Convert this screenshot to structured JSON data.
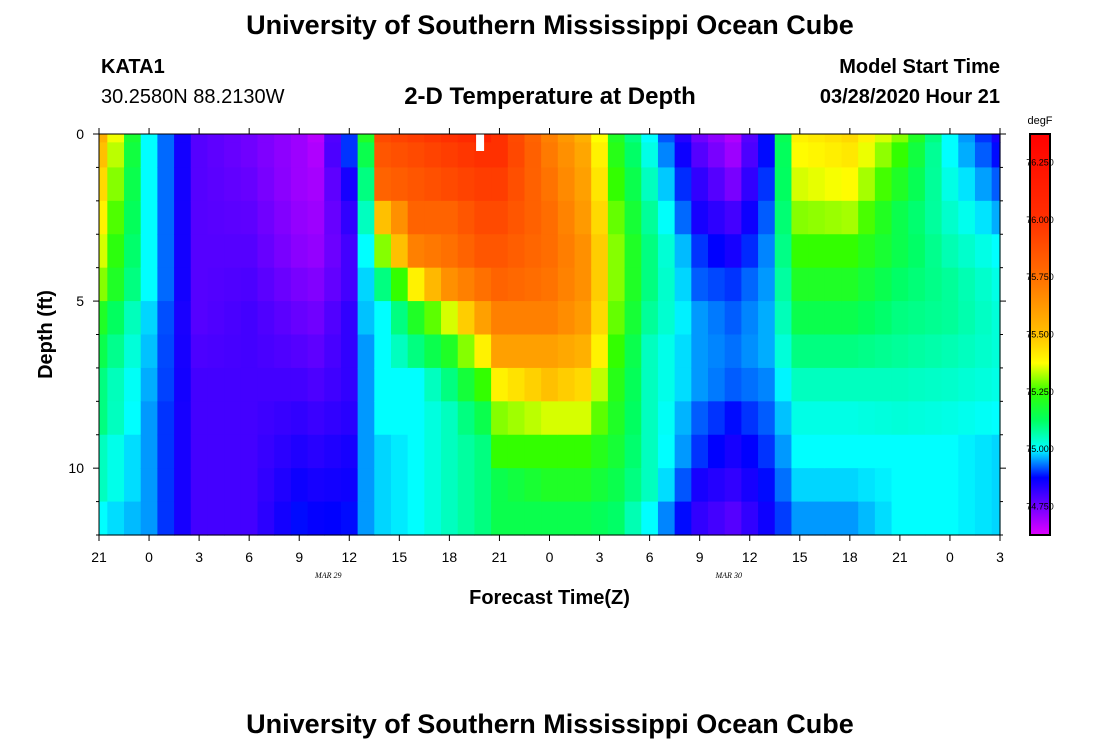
{
  "header": {
    "title": "University of Southern Mississippi Ocean Cube",
    "station": "KATA1",
    "coords": "30.2580N 88.2130W",
    "chart_title": "2-D Temperature at Depth",
    "model_start_label": "Model Start Time",
    "model_start_value": "03/28/2020 Hour 21"
  },
  "footer": {
    "title": "University of Southern Mississippi Ocean Cube"
  },
  "chart_data": {
    "type": "heatmap",
    "title": "2-D Temperature at Depth",
    "xlabel": "Forecast Time(Z)",
    "ylabel": "Depth (ft)",
    "x_hours": [
      0,
      1,
      2,
      3,
      4,
      5,
      6,
      7,
      8,
      9,
      10,
      11,
      12,
      13,
      14,
      15,
      16,
      17,
      18,
      19,
      20,
      21,
      22,
      23,
      24,
      25,
      26,
      27,
      28,
      29,
      30,
      31,
      32,
      33,
      34,
      35,
      36,
      37,
      38,
      39,
      40,
      41,
      42,
      43,
      44,
      45,
      46,
      47,
      48,
      49,
      50,
      51,
      52,
      53,
      54
    ],
    "x_range": [
      0,
      54
    ],
    "y_range": [
      0,
      12
    ],
    "y_ticks": [
      0,
      5,
      10
    ],
    "y_tick_labels": [
      "0",
      "5",
      "10"
    ],
    "x_ticks": [
      0,
      3,
      6,
      9,
      12,
      15,
      18,
      21,
      24,
      27,
      30,
      33,
      36,
      39,
      42,
      45,
      48,
      51,
      54
    ],
    "x_tick_labels": [
      "21",
      "0",
      "3",
      "6",
      "9",
      "12",
      "15",
      "18",
      "21",
      "0",
      "3",
      "6",
      "9",
      "12",
      "15",
      "18",
      "21",
      "0",
      "3"
    ],
    "date_labels": [
      {
        "label": "MAR 29",
        "x": 15
      },
      {
        "label": "MAR 30",
        "x": 39
      }
    ],
    "depth_levels": [
      0,
      0.5,
      1.5,
      2.5,
      3.5,
      4.5,
      5.5,
      6.5,
      7.5,
      8.5,
      9.5,
      10.5,
      11.5
    ],
    "profiles": [
      {
        "hour": 0,
        "temps": [
          75.55,
          75.5,
          75.45,
          75.4,
          75.35,
          75.3,
          75.2,
          75.15,
          75.1,
          75.1,
          75.05,
          75.05,
          75.0
        ]
      },
      {
        "hour": 3,
        "temps": [
          75.0,
          75.0,
          75.0,
          75.0,
          75.0,
          75.0,
          74.98,
          74.97,
          74.96,
          74.95,
          74.95,
          74.95,
          74.95
        ]
      },
      {
        "hour": 6,
        "temps": [
          74.78,
          74.78,
          74.78,
          74.78,
          74.78,
          74.78,
          74.78,
          74.79,
          74.8,
          74.8,
          74.8,
          74.8,
          74.8
        ]
      },
      {
        "hour": 9,
        "temps": [
          74.75,
          74.75,
          74.76,
          74.77,
          74.78,
          74.79,
          74.8,
          74.8,
          74.8,
          74.8,
          74.8,
          74.8,
          74.8
        ]
      },
      {
        "hour": 12,
        "temps": [
          74.7,
          74.7,
          74.7,
          74.71,
          74.72,
          74.74,
          74.76,
          74.78,
          74.8,
          74.82,
          74.84,
          74.86,
          74.88
        ]
      },
      {
        "hour": 13,
        "temps": [
          74.67,
          74.68,
          74.69,
          74.7,
          74.71,
          74.73,
          74.75,
          74.77,
          74.79,
          74.81,
          74.83,
          74.85,
          74.87
        ]
      },
      {
        "hour": 15,
        "temps": [
          74.9,
          74.9,
          74.85,
          74.82,
          74.8,
          74.8,
          74.82,
          74.82,
          74.82,
          74.83,
          74.85,
          74.86,
          74.88
        ]
      },
      {
        "hour": 16,
        "temps": [
          75.2,
          75.15,
          75.1,
          75.05,
          75.0,
          74.98,
          74.97,
          74.95,
          74.95,
          74.95,
          74.95,
          74.95,
          74.95
        ]
      },
      {
        "hour": 17,
        "temps": [
          75.9,
          75.85,
          75.8,
          75.5,
          75.3,
          75.1,
          75.0,
          75.0,
          75.0,
          75.0,
          74.98,
          74.98,
          74.98
        ]
      },
      {
        "hour": 19,
        "temps": [
          75.95,
          75.9,
          75.85,
          75.8,
          75.7,
          75.4,
          75.2,
          75.1,
          75.0,
          75.0,
          75.0,
          75.0,
          75.0
        ]
      },
      {
        "hour": 21,
        "temps": [
          76.0,
          75.95,
          75.9,
          75.8,
          75.75,
          75.65,
          75.35,
          75.2,
          75.1,
          75.05,
          75.05,
          75.05,
          75.05
        ]
      },
      {
        "hour": 23,
        "temps": [
          76.1,
          76.0,
          75.95,
          75.9,
          75.85,
          75.75,
          75.6,
          75.4,
          75.25,
          75.15,
          75.1,
          75.1,
          75.1
        ]
      },
      {
        "hour": 24,
        "temps": [
          76.0,
          76.0,
          75.95,
          75.9,
          75.85,
          75.8,
          75.7,
          75.6,
          75.4,
          75.3,
          75.25,
          75.15,
          75.15
        ]
      },
      {
        "hour": 27,
        "temps": [
          75.7,
          75.72,
          75.74,
          75.76,
          75.76,
          75.74,
          75.7,
          75.6,
          75.5,
          75.35,
          75.25,
          75.2,
          75.15
        ]
      },
      {
        "hour": 29,
        "temps": [
          75.55,
          75.58,
          75.6,
          75.62,
          75.65,
          75.65,
          75.62,
          75.55,
          75.45,
          75.35,
          75.25,
          75.2,
          75.15
        ]
      },
      {
        "hour": 31,
        "temps": [
          75.2,
          75.22,
          75.25,
          75.28,
          75.3,
          75.3,
          75.28,
          75.25,
          75.22,
          75.2,
          75.18,
          75.15,
          75.12
        ]
      },
      {
        "hour": 33,
        "temps": [
          75.0,
          75.02,
          75.05,
          75.08,
          75.1,
          75.1,
          75.08,
          75.05,
          75.05,
          75.05,
          75.05,
          75.05,
          75.0
        ]
      },
      {
        "hour": 36,
        "temps": [
          74.75,
          74.78,
          74.82,
          74.85,
          74.9,
          74.92,
          74.95,
          74.95,
          74.95,
          74.92,
          74.9,
          74.85,
          74.82
        ]
      },
      {
        "hour": 38,
        "temps": [
          74.68,
          74.7,
          74.74,
          74.8,
          74.85,
          74.9,
          74.92,
          74.93,
          74.92,
          74.88,
          74.85,
          74.82,
          74.78
        ]
      },
      {
        "hour": 40,
        "temps": [
          74.88,
          74.88,
          74.9,
          74.92,
          74.94,
          74.95,
          74.96,
          74.96,
          74.94,
          74.92,
          74.9,
          74.88,
          74.86
        ]
      },
      {
        "hour": 42,
        "temps": [
          75.4,
          75.38,
          75.35,
          75.3,
          75.25,
          75.2,
          75.15,
          75.1,
          75.05,
          75.02,
          75.0,
          74.98,
          74.95
        ]
      },
      {
        "hour": 45,
        "temps": [
          75.45,
          75.42,
          75.38,
          75.32,
          75.25,
          75.2,
          75.15,
          75.1,
          75.05,
          75.02,
          75.0,
          74.98,
          74.95
        ]
      },
      {
        "hour": 48,
        "temps": [
          75.3,
          75.25,
          75.2,
          75.15,
          75.15,
          75.12,
          75.1,
          75.08,
          75.05,
          75.03,
          75.0,
          75.0,
          75.0
        ]
      },
      {
        "hour": 51,
        "temps": [
          75.0,
          75.0,
          75.02,
          75.04,
          75.06,
          75.08,
          75.08,
          75.06,
          75.04,
          75.02,
          75.0,
          75.0,
          75.0
        ]
      },
      {
        "hour": 54,
        "temps": [
          74.85,
          74.88,
          74.92,
          74.96,
          75.0,
          75.02,
          75.03,
          75.03,
          75.02,
          75.0,
          74.98,
          74.98,
          74.98
        ]
      }
    ],
    "colorbar": {
      "units": "degF",
      "min": 74.625,
      "max": 76.375,
      "ticks": [
        74.75,
        75.0,
        75.25,
        75.5,
        75.75,
        76.0,
        76.25
      ],
      "tick_labels": [
        "74.750",
        "75.000",
        "75.250",
        "75.500",
        "75.750",
        "76.000",
        "76.250"
      ],
      "colormap": [
        [
          74.625,
          "#e000ff"
        ],
        [
          74.75,
          "#7000ff"
        ],
        [
          74.875,
          "#0000ff"
        ],
        [
          75.0,
          "#00ffff"
        ],
        [
          75.125,
          "#00ff60"
        ],
        [
          75.25,
          "#33ff00"
        ],
        [
          75.375,
          "#ffff00"
        ],
        [
          75.5,
          "#ffc000"
        ],
        [
          75.75,
          "#ff7000"
        ],
        [
          76.0,
          "#ff3000"
        ],
        [
          76.375,
          "#ff0000"
        ]
      ]
    },
    "colors": {
      "frame": "#000000",
      "marker": "#ffffff"
    }
  }
}
